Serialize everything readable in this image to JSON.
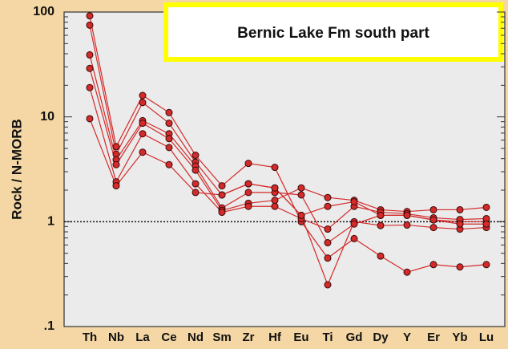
{
  "chart_data": {
    "type": "line",
    "title": "Bernic Lake Fm south part",
    "ylabel": "Rock / N-MORB",
    "categories": [
      "Th",
      "Nb",
      "La",
      "Ce",
      "Nd",
      "Sm",
      "Zr",
      "Hf",
      "Eu",
      "Ti",
      "Gd",
      "Dy",
      "Y",
      "Er",
      "Yb",
      "Lu"
    ],
    "log_y": true,
    "ylim": [
      0.1,
      100
    ],
    "yticks": [
      {
        "value": 0.1,
        "label": ".1"
      },
      1,
      10,
      100
    ],
    "hline": 1,
    "series": [
      {
        "color": "#d42a2a",
        "values": [
          92,
          5.2,
          16,
          11,
          4.3,
          2.2,
          3.6,
          3.3,
          1.0,
          0.45,
          0.69,
          0.47,
          0.33,
          0.39,
          0.37,
          0.39
        ]
      },
      {
        "color": "#d42a2a",
        "values": [
          75,
          4.4,
          13.7,
          8.7,
          3.7,
          1.8,
          2.3,
          2.1,
          1.15,
          0.25,
          1.0,
          0.92,
          0.93,
          0.88,
          0.85,
          0.88
        ]
      },
      {
        "color": "#d42a2a",
        "values": [
          39,
          3.9,
          9.2,
          6.9,
          3.4,
          1.35,
          1.9,
          1.9,
          1.8,
          0.63,
          0.95,
          1.15,
          1.15,
          1.04,
          1.0,
          1.0
        ]
      },
      {
        "color": "#d42a2a",
        "values": [
          29,
          3.5,
          8.7,
          6.2,
          3.1,
          1.28,
          1.5,
          1.6,
          2.1,
          1.7,
          1.6,
          1.3,
          1.25,
          1.3,
          1.3,
          1.37
        ]
      },
      {
        "color": "#d42a2a",
        "values": [
          19,
          2.4,
          6.9,
          5.1,
          2.3,
          1.23,
          1.4,
          1.4,
          1.07,
          0.85,
          1.4,
          1.23,
          1.19,
          1.09,
          1.05,
          1.07
        ]
      },
      {
        "color": "#d42a2a",
        "values": [
          9.6,
          2.2,
          4.6,
          3.5,
          1.9,
          1.8,
          2.3,
          2.1,
          1.15,
          1.4,
          1.55,
          1.15,
          1.15,
          1.04,
          0.95,
          0.95
        ]
      }
    ]
  }
}
